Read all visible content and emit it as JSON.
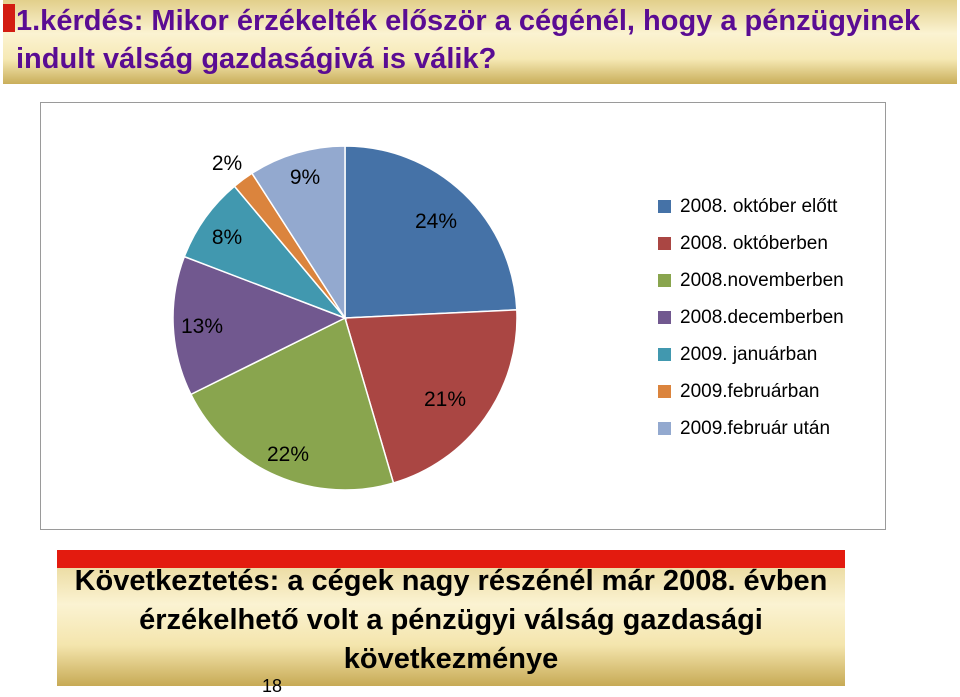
{
  "title": "1.kérdés: Mikor érzékelték először a cégénél, hogy a pénzügyinek indult válság gazdaságivá is válik?",
  "chart_data": {
    "type": "pie",
    "slices": [
      {
        "label": "2008. október előtt",
        "value": 24,
        "value_label": "24%",
        "color": "#4572a7"
      },
      {
        "label": "2008. októberben",
        "value": 21,
        "value_label": "21%",
        "color": "#aa4643"
      },
      {
        "label": "2008.novemberben",
        "value": 22,
        "value_label": "22%",
        "color": "#89a54e"
      },
      {
        "label": "2008.decemberben",
        "value": 13,
        "value_label": "13%",
        "color": "#71588f"
      },
      {
        "label": "2009. januárban",
        "value": 8,
        "value_label": "8%",
        "color": "#4198af"
      },
      {
        "label": "2009.februárban",
        "value": 2,
        "value_label": "2%",
        "color": "#db843d"
      },
      {
        "label": "2009.február után",
        "value": 9,
        "value_label": "9%",
        "color": "#93a9cf"
      }
    ],
    "legend_position": "right"
  },
  "conclusion": "Következtetés: a cégek nagy részénél már 2008. évben érzékelhető volt a pénzügyi válság gazdasági következménye",
  "page_number": "18"
}
